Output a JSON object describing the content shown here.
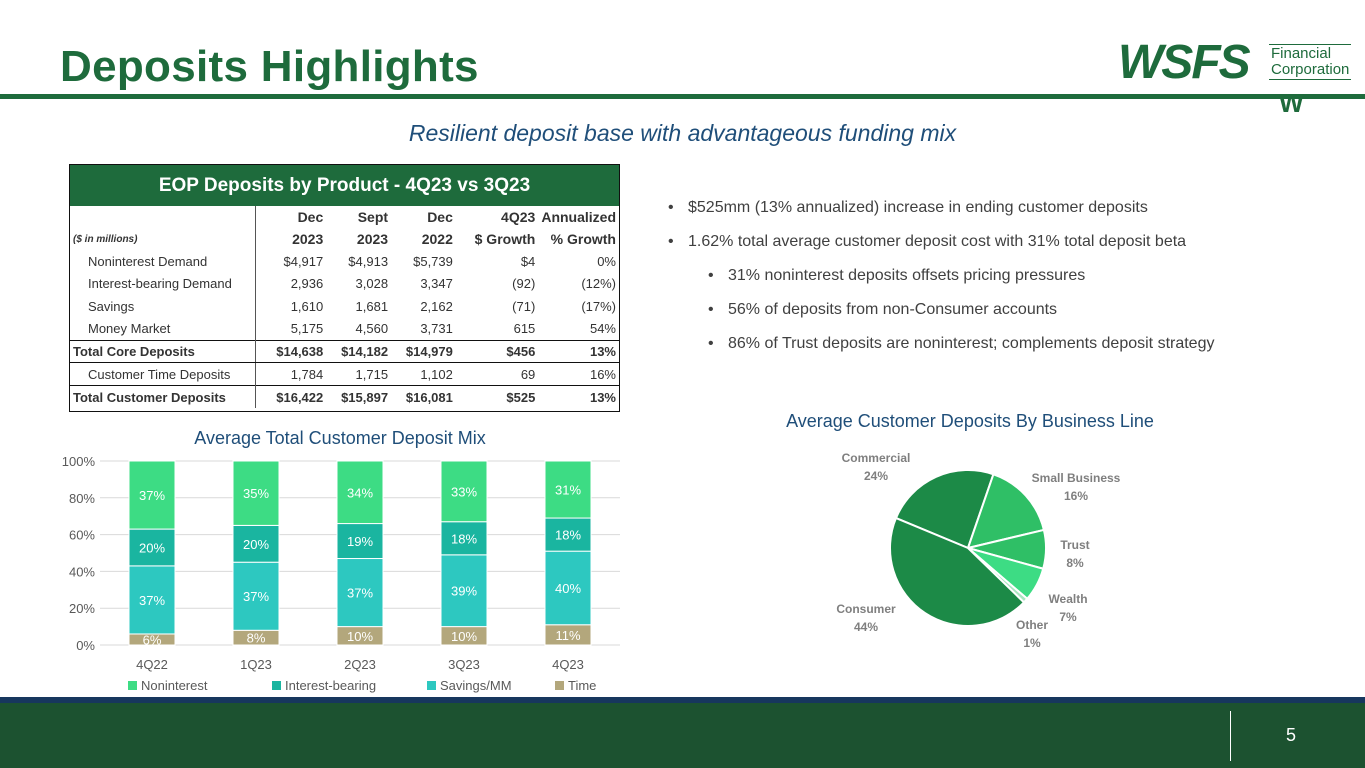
{
  "slide": {
    "title": "Deposits Highlights",
    "subtitle": "Resilient deposit base with advantageous funding mix",
    "page_number": "5"
  },
  "logo": {
    "main": "WSFS",
    "sub_line1": "Financial",
    "sub_line2": "Corporation",
    "mark": "W"
  },
  "colors": {
    "brand_green": "#1e6b3c",
    "noninterest": "#3ddc84",
    "interest_bearing": "#1ab5a0",
    "savings_mm": "#2dc8c0",
    "time": "#b3a77c",
    "pie_dark": "#1c8a47",
    "pie_mid": "#2fbf66",
    "pie_light": "#3ddc84",
    "pie_other": "#a8e6c0"
  },
  "table": {
    "title": "EOP Deposits by Product - 4Q23 vs 3Q23",
    "units": "($ in millions)",
    "headers_top": [
      "Dec",
      "Sept",
      "Dec",
      "4Q23",
      "Annualized"
    ],
    "headers_bottom": [
      "2023",
      "2023",
      "2022",
      "$ Growth",
      "% Growth"
    ],
    "rows": [
      {
        "label": "Noninterest Demand",
        "values": [
          "$4,917",
          "$4,913",
          "$5,739",
          "$4",
          "0%"
        ],
        "total": false
      },
      {
        "label": "Interest-bearing Demand",
        "values": [
          "2,936",
          "3,028",
          "3,347",
          "(92)",
          "(12%)"
        ],
        "total": false
      },
      {
        "label": "Savings",
        "values": [
          "1,610",
          "1,681",
          "2,162",
          "(71)",
          "(17%)"
        ],
        "total": false
      },
      {
        "label": "Money Market",
        "values": [
          "5,175",
          "4,560",
          "3,731",
          "615",
          "54%"
        ],
        "total": false
      },
      {
        "label": "Total Core Deposits",
        "values": [
          "$14,638",
          "$14,182",
          "$14,979",
          "$456",
          "13%"
        ],
        "total": true
      },
      {
        "label": "Customer Time Deposits",
        "values": [
          "1,784",
          "1,715",
          "1,102",
          "69",
          "16%"
        ],
        "total": false
      },
      {
        "label": "Total Customer Deposits",
        "values": [
          "$16,422",
          "$15,897",
          "$16,081",
          "$525",
          "13%"
        ],
        "total": true
      }
    ]
  },
  "bullets": [
    {
      "text": "$525mm (13% annualized) increase in ending customer deposits",
      "level": 1
    },
    {
      "text": "1.62% total average customer deposit cost with 31% total deposit beta",
      "level": 1
    },
    {
      "text": "31% noninterest deposits offsets pricing pressures",
      "level": 2
    },
    {
      "text": "56% of deposits from non-Consumer accounts",
      "level": 2
    },
    {
      "text": "86% of Trust deposits are noninterest; complements deposit strategy",
      "level": 2
    }
  ],
  "chart_data": [
    {
      "type": "bar",
      "stacked": true,
      "title": "Average Total Customer Deposit Mix",
      "categories": [
        "4Q22",
        "1Q23",
        "2Q23",
        "3Q23",
        "4Q23"
      ],
      "series": [
        {
          "name": "Time",
          "values": [
            6,
            8,
            10,
            10,
            11
          ],
          "labels": [
            "6%",
            "8%",
            "10%",
            "10%",
            "11%"
          ]
        },
        {
          "name": "Savings/MM",
          "values": [
            37,
            37,
            37,
            39,
            40
          ],
          "labels": [
            "37%",
            "37%",
            "37%",
            "39%",
            "40%"
          ]
        },
        {
          "name": "Interest-bearing",
          "values": [
            20,
            20,
            19,
            18,
            18
          ],
          "labels": [
            "20%",
            "20%",
            "19%",
            "18%",
            "18%"
          ]
        },
        {
          "name": "Noninterest",
          "values": [
            37,
            35,
            34,
            33,
            31
          ],
          "labels": [
            "37%",
            "35%",
            "34%",
            "33%",
            "31%"
          ]
        }
      ],
      "legend_order": [
        "Noninterest",
        "Interest-bearing",
        "Savings/MM",
        "Time"
      ],
      "y_ticks": [
        "0%",
        "20%",
        "40%",
        "60%",
        "80%",
        "100%"
      ],
      "ylim": [
        0,
        100
      ],
      "grid": true,
      "legend_position": "bottom"
    },
    {
      "type": "pie",
      "title": "Average Customer Deposits By Business Line",
      "slices": [
        {
          "name": "Commercial",
          "value": 24,
          "label": "24%"
        },
        {
          "name": "Small Business",
          "value": 16,
          "label": "16%"
        },
        {
          "name": "Trust",
          "value": 8,
          "label": "8%"
        },
        {
          "name": "Wealth",
          "value": 7,
          "label": "7%"
        },
        {
          "name": "Other",
          "value": 1,
          "label": "1%"
        },
        {
          "name": "Consumer",
          "value": 44,
          "label": "44%"
        }
      ]
    }
  ]
}
